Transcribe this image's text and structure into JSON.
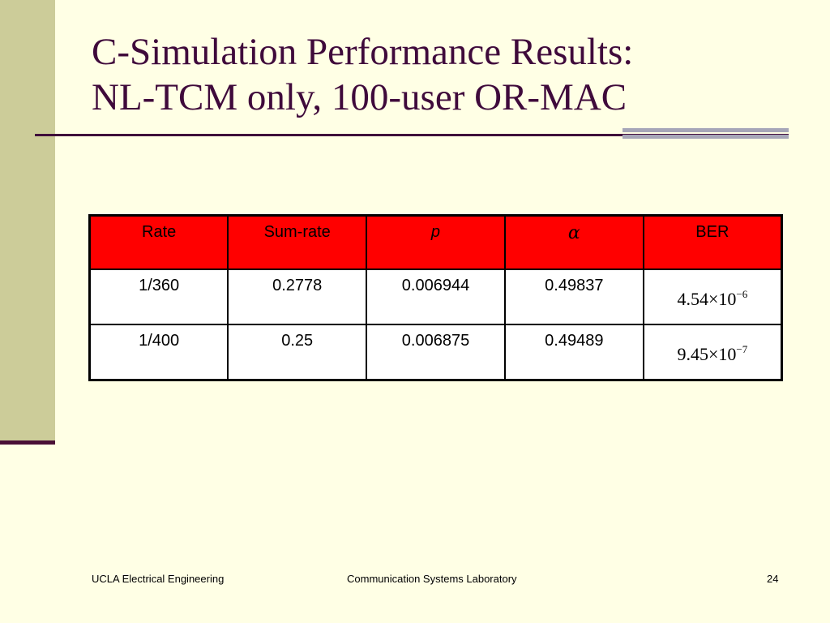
{
  "slide": {
    "title_line1": "C-Simulation Performance Results:",
    "title_line2": "NL-TCM only, 100-user OR-MAC",
    "colors": {
      "background": "#FFFFE5",
      "sidebar": "#CCCC99",
      "title": "#3F0A3B",
      "table_header": "#FF0000",
      "accent_bars": "#A6A6B8"
    }
  },
  "table": {
    "headers": [
      "Rate",
      "Sum-rate",
      "p",
      "α",
      "BER"
    ],
    "rows": [
      {
        "rate": "1/360",
        "sum_rate": "0.2778",
        "p": "0.006944",
        "alpha": "0.49837",
        "ber_mantissa": "4.54×10",
        "ber_exponent": "−6"
      },
      {
        "rate": "1/400",
        "sum_rate": "0.25",
        "p": "0.006875",
        "alpha": "0.49489",
        "ber_mantissa": "9.45×10",
        "ber_exponent": "−7"
      }
    ]
  },
  "footer": {
    "left": "UCLA Electrical Engineering",
    "center": "Communication Systems Laboratory",
    "page_number": "24"
  }
}
